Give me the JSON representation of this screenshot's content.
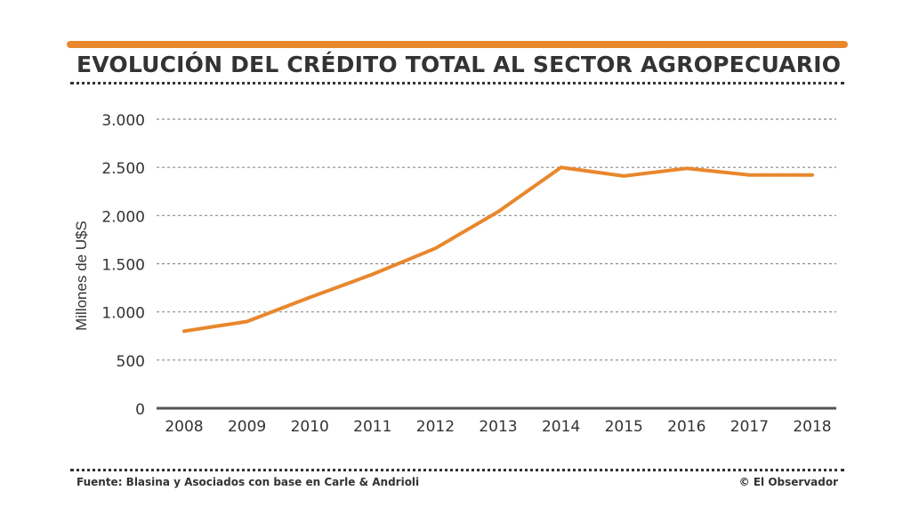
{
  "title": "EVOLUCIÓN DEL CRÉDITO TOTAL AL SECTOR AGROPECUARIO",
  "source": "Fuente: Blasina y Asociados con base en Carle & Andrioli",
  "credit": "© El Observador",
  "colors": {
    "accent": "#e8872c",
    "text": "#333333",
    "grid": "#8a8a8a",
    "axis": "#555555"
  },
  "chart_data": {
    "type": "line",
    "title": "EVOLUCIÓN DEL CRÉDITO TOTAL AL SECTOR AGROPECUARIO",
    "xlabel": "",
    "ylabel": "Millones de U$S",
    "categories": [
      "2008",
      "2009",
      "2010",
      "2011",
      "2012",
      "2013",
      "2014",
      "2015",
      "2016",
      "2017",
      "2018"
    ],
    "series": [
      {
        "values": [
          800,
          900,
          1150,
          1390,
          1660,
          2040,
          2500,
          2410,
          2490,
          2420,
          2420
        ]
      }
    ],
    "y_ticks": [
      0,
      500,
      1000,
      1500,
      2000,
      2500,
      3000
    ],
    "y_tick_labels": [
      "0",
      "500",
      "1.000",
      "1.500",
      "2.000",
      "2.500",
      "3.000"
    ],
    "ylim": [
      0,
      3000
    ],
    "grid": true,
    "legend": "none"
  }
}
